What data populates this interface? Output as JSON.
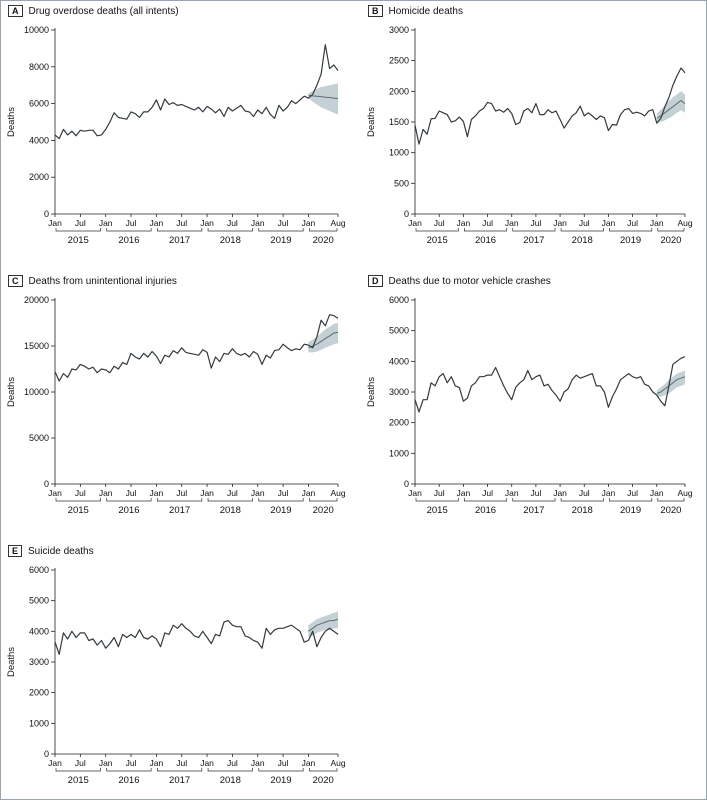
{
  "chart_data": [
    {
      "panel": "A",
      "type": "line",
      "title": "Drug overdose deaths (all intents)",
      "ylabel": "Deaths",
      "ylim": [
        0,
        10000
      ],
      "yticks": [
        0,
        2000,
        4000,
        6000,
        8000,
        10000
      ],
      "xlim": [
        "2015-01",
        "2020-08"
      ],
      "month_tick_labels": [
        "Jan",
        "Jul",
        "Jan",
        "Jul",
        "Jan",
        "Jul",
        "Jan",
        "Jul",
        "Jan",
        "Jul",
        "Jan",
        "Aug"
      ],
      "year_labels": [
        "2015",
        "2016",
        "2017",
        "2018",
        "2019",
        "2020"
      ],
      "grid": false,
      "observed": [
        4300,
        4100,
        4600,
        4300,
        4500,
        4250,
        4550,
        4500,
        4550,
        4550,
        4250,
        4300,
        4600,
        5000,
        5500,
        5250,
        5200,
        5150,
        5550,
        5450,
        5250,
        5550,
        5550,
        5800,
        6200,
        5650,
        6250,
        5950,
        6050,
        5900,
        5950,
        5850,
        5750,
        5650,
        5800,
        5550,
        5850,
        5700,
        5500,
        5700,
        5300,
        5800,
        5600,
        5750,
        5900,
        5600,
        5550,
        5300,
        5650,
        5450,
        5800,
        5400,
        5200,
        5900,
        5600,
        5800,
        6150,
        6000,
        6200,
        6400,
        6300,
        6500,
        7000,
        7600,
        9200,
        7900,
        8100,
        7800
      ],
      "predicted": [
        6450,
        6420,
        6400,
        6380,
        6350,
        6330,
        6300,
        6270
      ],
      "band_lower": [
        6300,
        6100,
        5950,
        5800,
        5700,
        5600,
        5500,
        5400
      ],
      "band_upper": [
        6550,
        6700,
        6800,
        6900,
        6950,
        7000,
        7050,
        7100
      ]
    },
    {
      "panel": "B",
      "type": "line",
      "title": "Homicide deaths",
      "ylabel": "Deaths",
      "ylim": [
        0,
        3000
      ],
      "yticks": [
        0,
        500,
        1000,
        1500,
        2000,
        2500,
        3000
      ],
      "xlim": [
        "2015-01",
        "2020-08"
      ],
      "month_tick_labels": [
        "Jan",
        "Jul",
        "Jan",
        "Jul",
        "Jan",
        "Jul",
        "Jan",
        "Jul",
        "Jan",
        "Jul",
        "Jan",
        "Aug"
      ],
      "year_labels": [
        "2015",
        "2016",
        "2017",
        "2018",
        "2019",
        "2020"
      ],
      "grid": false,
      "observed": [
        1450,
        1140,
        1380,
        1300,
        1550,
        1560,
        1680,
        1650,
        1620,
        1500,
        1520,
        1580,
        1510,
        1260,
        1540,
        1600,
        1680,
        1720,
        1820,
        1800,
        1680,
        1700,
        1660,
        1720,
        1640,
        1460,
        1490,
        1680,
        1720,
        1650,
        1800,
        1620,
        1620,
        1700,
        1650,
        1680,
        1540,
        1400,
        1500,
        1600,
        1650,
        1760,
        1600,
        1650,
        1600,
        1540,
        1600,
        1570,
        1360,
        1460,
        1450,
        1620,
        1700,
        1720,
        1640,
        1660,
        1640,
        1600,
        1680,
        1700,
        1480,
        1560,
        1750,
        1900,
        2100,
        2250,
        2380,
        2300
      ],
      "predicted": [
        1560,
        1600,
        1650,
        1700,
        1750,
        1800,
        1850,
        1800
      ],
      "band_lower": [
        1480,
        1500,
        1530,
        1560,
        1600,
        1650,
        1690,
        1650
      ],
      "band_upper": [
        1640,
        1700,
        1770,
        1840,
        1900,
        1950,
        2000,
        1950
      ]
    },
    {
      "panel": "C",
      "type": "line",
      "title": "Deaths from unintentional injuries",
      "ylabel": "Deaths",
      "ylim": [
        0,
        20000
      ],
      "yticks": [
        0,
        5000,
        10000,
        15000,
        20000
      ],
      "xlim": [
        "2015-01",
        "2020-08"
      ],
      "month_tick_labels": [
        "Jan",
        "Jul",
        "Jan",
        "Jul",
        "Jan",
        "Jul",
        "Jan",
        "Jul",
        "Jan",
        "Jul",
        "Jan",
        "Aug"
      ],
      "year_labels": [
        "2015",
        "2016",
        "2017",
        "2018",
        "2019",
        "2020"
      ],
      "grid": false,
      "observed": [
        12200,
        11200,
        12000,
        11600,
        12500,
        12400,
        13000,
        12800,
        12500,
        12700,
        12100,
        12500,
        12400,
        12100,
        12800,
        12500,
        13200,
        13000,
        14200,
        13800,
        13600,
        14200,
        13800,
        14400,
        13900,
        13100,
        14000,
        13800,
        14500,
        14200,
        14800,
        14300,
        14200,
        14100,
        14000,
        14600,
        14300,
        12600,
        13800,
        13300,
        14200,
        14100,
        14700,
        14200,
        14000,
        14200,
        13800,
        14400,
        14100,
        13000,
        14000,
        13700,
        14500,
        14600,
        15200,
        14800,
        14500,
        14700,
        14600,
        15200,
        15100,
        14800,
        16000,
        17800,
        17200,
        18400,
        18300,
        18000
      ],
      "predicted": [
        14800,
        15000,
        15200,
        15500,
        15800,
        16100,
        16400,
        16500
      ],
      "band_lower": [
        14300,
        14300,
        14400,
        14600,
        14800,
        15000,
        15200,
        15300
      ],
      "band_upper": [
        15400,
        15700,
        16000,
        16400,
        16800,
        17100,
        17400,
        17500
      ]
    },
    {
      "panel": "D",
      "type": "line",
      "title": "Deaths due to motor vehicle crashes",
      "ylabel": "Deaths",
      "ylim": [
        0,
        6000
      ],
      "yticks": [
        0,
        1000,
        2000,
        3000,
        4000,
        5000,
        6000
      ],
      "xlim": [
        "2015-01",
        "2020-08"
      ],
      "month_tick_labels": [
        "Jan",
        "Jul",
        "Jan",
        "Jul",
        "Jan",
        "Jul",
        "Jan",
        "Jul",
        "Jan",
        "Jul",
        "Jan",
        "Aug"
      ],
      "year_labels": [
        "2015",
        "2016",
        "2017",
        "2018",
        "2019",
        "2020"
      ],
      "grid": false,
      "observed": [
        2750,
        2350,
        2750,
        2750,
        3300,
        3200,
        3500,
        3600,
        3300,
        3500,
        3200,
        3150,
        2700,
        2800,
        3200,
        3300,
        3500,
        3500,
        3550,
        3550,
        3800,
        3500,
        3200,
        2950,
        2750,
        3150,
        3300,
        3400,
        3700,
        3400,
        3500,
        3550,
        3200,
        3250,
        3050,
        2900,
        2700,
        3000,
        3100,
        3400,
        3550,
        3450,
        3500,
        3550,
        3600,
        3200,
        3200,
        3000,
        2500,
        2850,
        3100,
        3400,
        3500,
        3600,
        3500,
        3450,
        3500,
        3250,
        3200,
        3000,
        2900,
        2700,
        2550,
        3200,
        3900,
        4000,
        4100,
        4150
      ],
      "predicted": [
        2950,
        3000,
        3100,
        3200,
        3300,
        3400,
        3450,
        3500
      ],
      "band_lower": [
        2850,
        2850,
        2900,
        2950,
        3050,
        3150,
        3200,
        3250
      ],
      "band_upper": [
        3050,
        3150,
        3250,
        3400,
        3500,
        3600,
        3650,
        3700
      ]
    },
    {
      "panel": "E",
      "type": "line",
      "title": "Suicide deaths",
      "ylabel": "Deaths",
      "ylim": [
        0,
        6000
      ],
      "yticks": [
        0,
        1000,
        2000,
        3000,
        4000,
        5000,
        6000
      ],
      "xlim": [
        "2015-01",
        "2020-08"
      ],
      "month_tick_labels": [
        "Jan",
        "Jul",
        "Jan",
        "Jul",
        "Jan",
        "Jul",
        "Jan",
        "Jul",
        "Jan",
        "Jul",
        "Jan",
        "Aug"
      ],
      "year_labels": [
        "2015",
        "2016",
        "2017",
        "2018",
        "2019",
        "2020"
      ],
      "grid": false,
      "observed": [
        3650,
        3250,
        3950,
        3750,
        4000,
        3800,
        3950,
        3950,
        3700,
        3750,
        3550,
        3700,
        3450,
        3600,
        3800,
        3500,
        3900,
        3800,
        3900,
        3800,
        4050,
        3800,
        3750,
        3850,
        3750,
        3500,
        3950,
        3900,
        4200,
        4100,
        4250,
        4100,
        4000,
        3850,
        3800,
        4000,
        3800,
        3600,
        3900,
        3850,
        4300,
        4350,
        4200,
        4150,
        4150,
        3850,
        3800,
        3700,
        3650,
        3450,
        4100,
        3900,
        4050,
        4100,
        4100,
        4150,
        4200,
        4100,
        4000,
        3650,
        3700,
        4000,
        3500,
        3800,
        4000,
        4100,
        4000,
        3900
      ],
      "predicted": [
        4000,
        4100,
        4200,
        4250,
        4300,
        4350,
        4350,
        4400
      ],
      "band_lower": [
        3800,
        3850,
        3950,
        4000,
        4050,
        4050,
        4100,
        4100
      ],
      "band_upper": [
        4200,
        4300,
        4400,
        4450,
        4500,
        4550,
        4600,
        4650
      ]
    }
  ]
}
